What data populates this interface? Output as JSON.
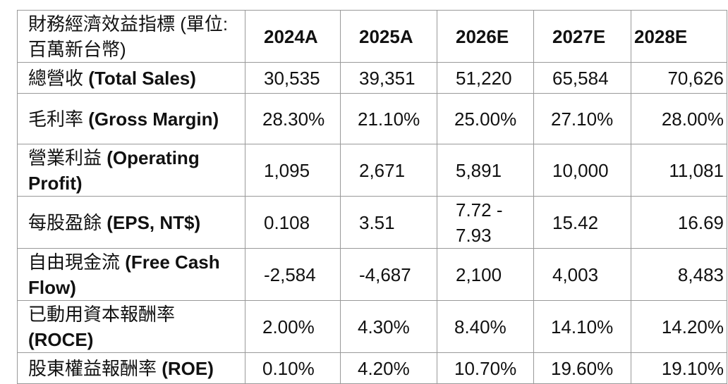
{
  "table": {
    "header": {
      "metric": "財務經濟效益指標 (單位: 百萬新台幣)",
      "years": [
        "2024A",
        "2025A",
        "2026E",
        "2027E",
        "2028E"
      ]
    },
    "rows": [
      {
        "label_zh": "總營收",
        "label_en": "(Total Sales)",
        "values": [
          "30,535",
          "39,351",
          "51,220",
          "65,584",
          "70,626"
        ]
      },
      {
        "label_zh": "毛利率",
        "label_en": "(Gross Margin)",
        "values": [
          "28.30%",
          "21.10%",
          "25.00%",
          "27.10%",
          "28.00%"
        ]
      },
      {
        "label_zh": "營業利益",
        "label_en": "(Operating Profit)",
        "values": [
          "1,095",
          "2,671",
          "5,891",
          "10,000",
          "11,081"
        ]
      },
      {
        "label_zh": "每股盈餘",
        "label_en": "(EPS, NT$)",
        "values": [
          "0.108",
          "3.51",
          "7.72 - 7.93",
          "15.42",
          "16.69"
        ]
      },
      {
        "label_zh": "自由現金流",
        "label_en": "(Free Cash Flow)",
        "values": [
          "-2,584",
          "-4,687",
          "2,100",
          "4,003",
          "8,483"
        ]
      },
      {
        "label_zh": "已動用資本報酬率",
        "label_en": "(ROCE)",
        "values": [
          "2.00%",
          "4.30%",
          "8.40%",
          "14.10%",
          "14.20%"
        ]
      },
      {
        "label_zh": "股東權益報酬率",
        "label_en": "(ROE)",
        "values": [
          "0.10%",
          "4.20%",
          "10.70%",
          "19.60%",
          "19.10%"
        ]
      }
    ]
  }
}
